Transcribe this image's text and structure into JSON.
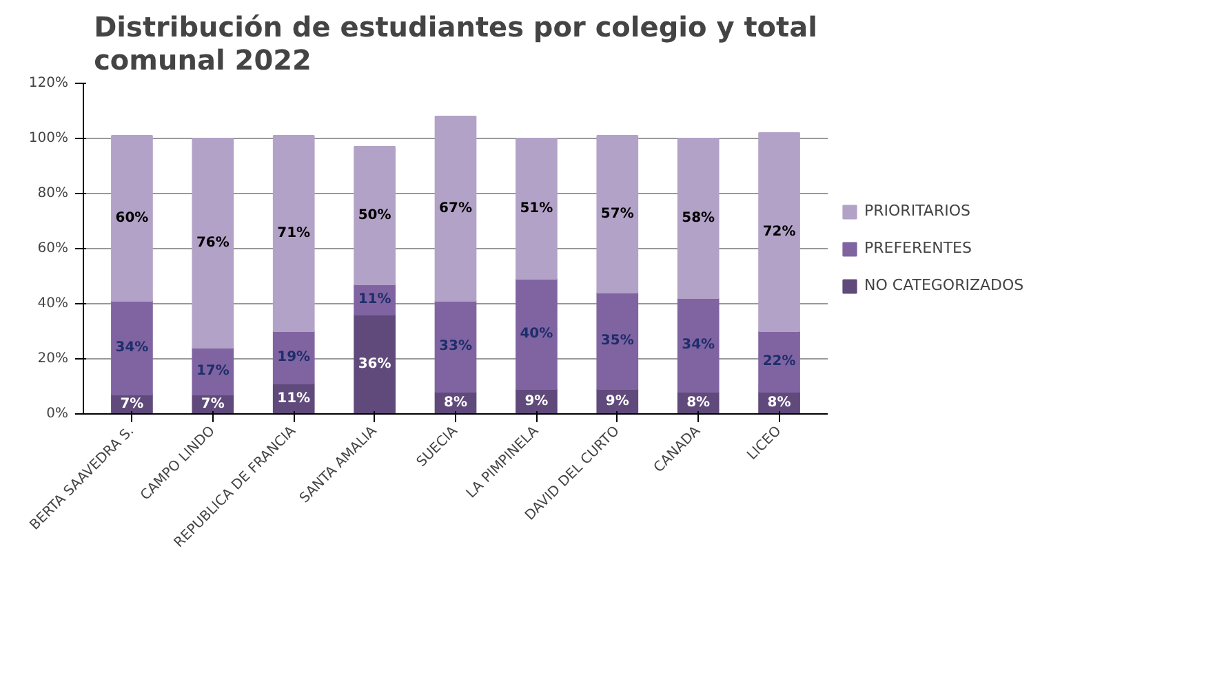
{
  "chart_data": {
    "type": "bar",
    "stacked": true,
    "title": "Distribución de estudiantes por colegio y total comunal 2022",
    "categories": [
      "BERTA SAAVEDRA S.",
      "CAMPO LINDO",
      "REPUBLICA DE FRANCIA",
      "SANTA AMALIA",
      "SUECIA",
      "LA PIMPINELA",
      "DAVID DEL CURTO",
      "CANADA",
      "LICEO"
    ],
    "series": [
      {
        "name": "NO CATEGORIZADOS",
        "color": "#604a7b",
        "values": [
          7,
          7,
          11,
          36,
          8,
          9,
          9,
          8,
          8
        ],
        "value_labels": [
          "7%",
          "7%",
          "11%",
          "36%",
          "8%",
          "9%",
          "9%",
          "8%",
          "8%"
        ]
      },
      {
        "name": "PREFERENTES",
        "color": "#8064a2",
        "values": [
          34,
          17,
          19,
          11,
          33,
          40,
          35,
          34,
          22
        ],
        "value_labels": [
          "34%",
          "17%",
          "19%",
          "11%",
          "33%",
          "40%",
          "35%",
          "34%",
          "22%"
        ]
      },
      {
        "name": "PRIORITARIOS",
        "color": "#b3a2c7",
        "values": [
          60,
          76,
          71,
          50,
          67,
          51,
          57,
          58,
          72
        ],
        "value_labels": [
          "60%",
          "76%",
          "71%",
          "50%",
          "67%",
          "51%",
          "57%",
          "58%",
          "72%"
        ]
      }
    ],
    "ylim": [
      0,
      120
    ],
    "yticks": [
      {
        "value": 0,
        "label": "0%"
      },
      {
        "value": 20,
        "label": "20%"
      },
      {
        "value": 40,
        "label": "40%"
      },
      {
        "value": 60,
        "label": "60%"
      },
      {
        "value": 80,
        "label": "80%"
      },
      {
        "value": 100,
        "label": "100%"
      },
      {
        "value": 120,
        "label": "120%"
      }
    ],
    "grid": "y",
    "legend": "right"
  }
}
